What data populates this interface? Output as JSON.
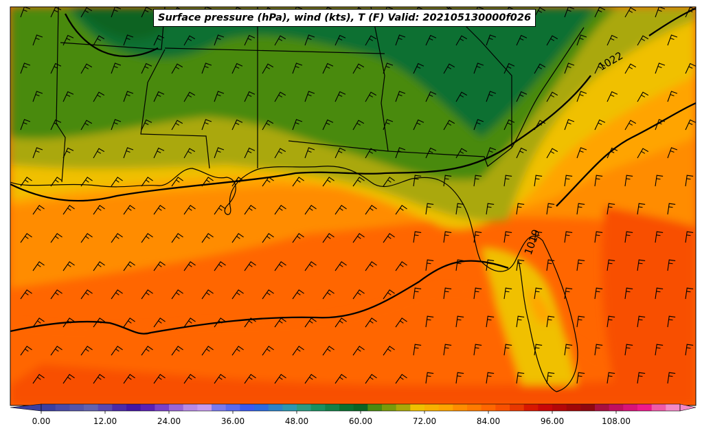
{
  "title": "Surface pressure (hPa), wind (kts), T (F) Valid: 202105130000f026",
  "colorbar": {
    "tick_labels": [
      "0.00",
      "12.00",
      "24.00",
      "36.00",
      "48.00",
      "60.00",
      "72.00",
      "84.00",
      "96.00",
      "108.00"
    ],
    "tick_values": [
      0,
      12,
      24,
      36,
      48,
      60,
      72,
      84,
      96,
      108
    ],
    "vmin": -6,
    "vmax": 122,
    "step": 3,
    "colors": [
      "#3b3fa0",
      "#4a4aa8",
      "#5555aa",
      "#6262b0",
      "#5a48b0",
      "#4c2aa8",
      "#4416a4",
      "#5a20b4",
      "#7a40c8",
      "#9a66d8",
      "#b88ae6",
      "#c79cf0",
      "#7a7af0",
      "#5a6af0",
      "#3a5af0",
      "#2a6ae0",
      "#2a82c8",
      "#2a96b0",
      "#2a9a80",
      "#1a9060",
      "#128048",
      "#0a7030",
      "#0a6424",
      "#4a8a10",
      "#7a9a0a",
      "#aaa808",
      "#f0c000",
      "#f8b000",
      "#ffa400",
      "#ff8c00",
      "#ff7a00",
      "#ff6600",
      "#f85000",
      "#e83800",
      "#d81800",
      "#c80808",
      "#b40808",
      "#a00808",
      "#900810",
      "#a81040",
      "#c01060",
      "#d81478",
      "#ee1a8c",
      "#f05aa8",
      "#f48ac8"
    ]
  },
  "legend_colors": {
    "temp_60_63": "#4a8a10",
    "temp_57_60": "#0a6424",
    "temp_54_57": "#0a7030",
    "temp_63_66": "#7a9a0a",
    "temp_66_69": "#aaa808",
    "temp_69_72": "#f0c000",
    "temp_72_75": "#ffa400",
    "temp_75_78": "#ff8c00",
    "temp_78_81": "#ff6600",
    "temp_81_84": "#f85000"
  },
  "isobar_labels": [
    "1022",
    "1019"
  ]
}
